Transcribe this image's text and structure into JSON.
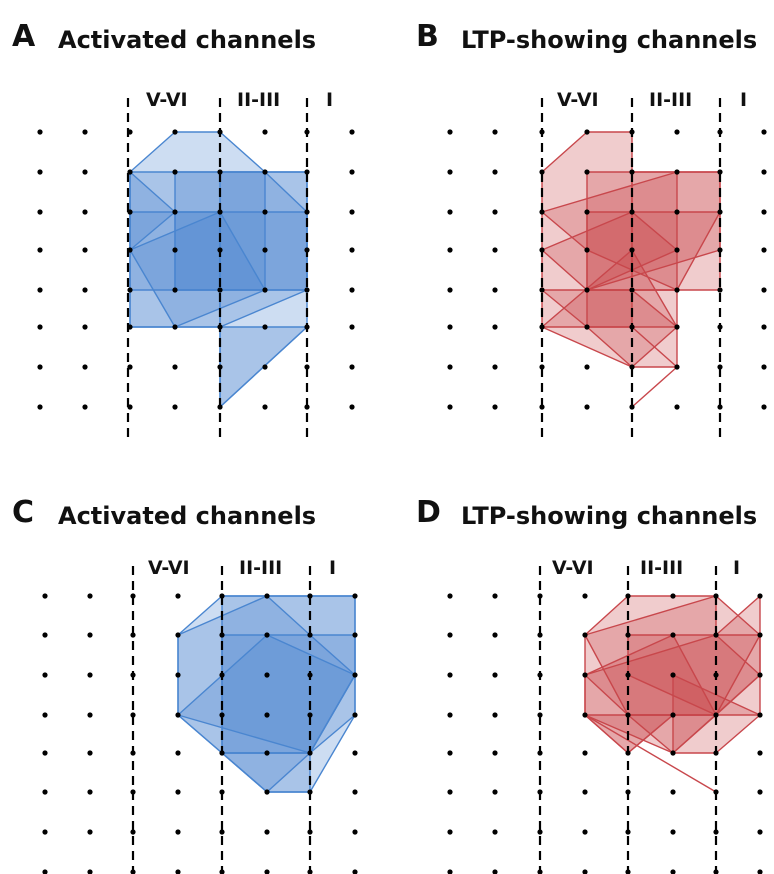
{
  "figure": {
    "colors": {
      "activated": "#4a86d0",
      "ltp": "#c8474c",
      "dot": "#000000"
    },
    "panels": [
      {
        "id": "A",
        "letter": "A",
        "title": "Activated channels",
        "kind": "activated",
        "layers": [
          "V-VI",
          "II-III",
          "I"
        ]
      },
      {
        "id": "B",
        "letter": "B",
        "title": "LTP-showing channels",
        "kind": "ltp",
        "layers": [
          "V-VI",
          "II-III",
          "I"
        ]
      },
      {
        "id": "C",
        "letter": "C",
        "title": "Activated channels",
        "kind": "activated",
        "layers": [
          "V-VI",
          "II-III",
          "I"
        ]
      },
      {
        "id": "D",
        "letter": "D",
        "title": "LTP-showing channels",
        "kind": "ltp",
        "layers": [
          "V-VI",
          "II-III",
          "I"
        ]
      }
    ]
  }
}
